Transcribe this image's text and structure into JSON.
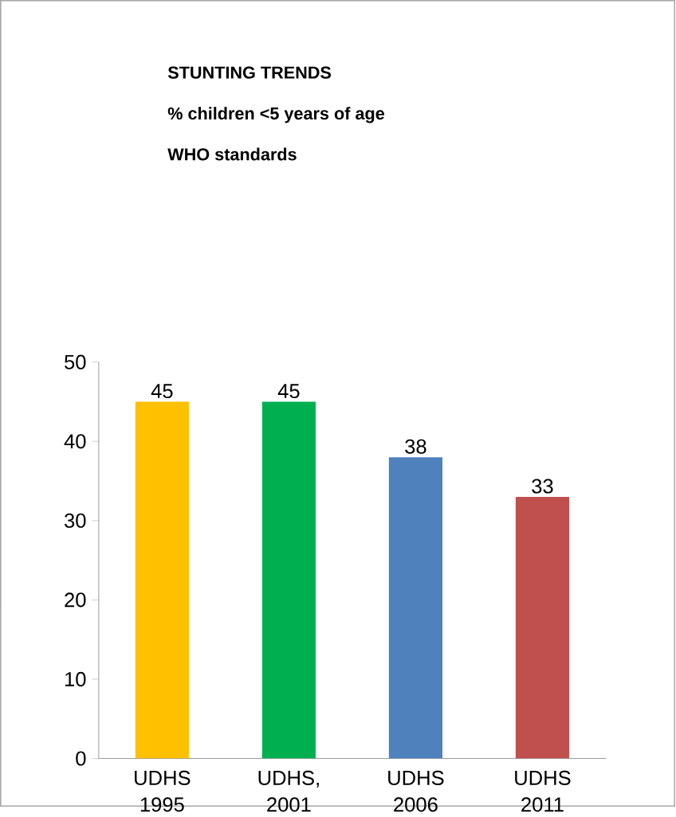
{
  "chart_data": {
    "type": "bar",
    "title": "STUNTING TRENDS",
    "subtitle": "% children <5 years of age",
    "annotations": [
      "WHO standards"
    ],
    "categories": [
      "UDHS 1995",
      "UDHS, 2001",
      "UDHS 2006",
      "UDHS 2011"
    ],
    "values": [
      45,
      45,
      38,
      33
    ],
    "colors": [
      "#ffc000",
      "#00b050",
      "#4f81bd",
      "#c0504d"
    ],
    "ylim": [
      0,
      50
    ],
    "yticks": [
      0,
      10,
      20,
      30,
      40,
      50
    ],
    "data_labels": true,
    "grid": false
  }
}
